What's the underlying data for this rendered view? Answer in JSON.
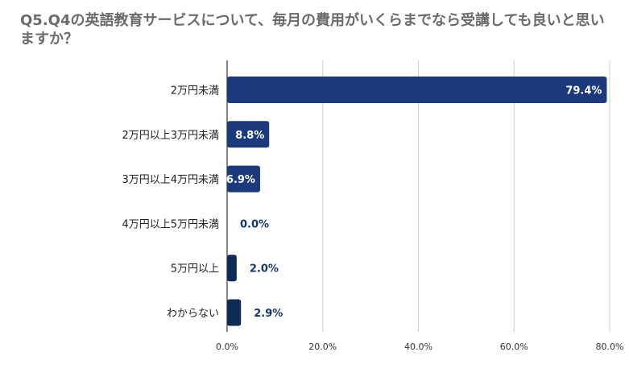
{
  "title": "Q5.Q4の英語教育サービスについて、毎月の費用がいくらまでなら受講しても良いと思いますか？",
  "colors": {
    "bar_main": "#1a3a7c",
    "bar_alt": "#0f2a55",
    "grid": "#d0d0d0",
    "label_inside": "#ffffff",
    "label_outside": "#153768"
  },
  "chart_data": {
    "type": "bar",
    "orientation": "horizontal",
    "title": "Q5.Q4の英語教育サービスについて、毎月の費用がいくらまでなら受講しても良いと思いますか？",
    "categories": [
      "2万円未満",
      "2万円以上3万円未満",
      "3万円以上4万円未満",
      "4万円以上5万円未満",
      "5万円以上",
      "わからない"
    ],
    "values": [
      79.4,
      8.8,
      6.9,
      0.0,
      2.0,
      2.9
    ],
    "value_labels": [
      "79.4%",
      "8.8%",
      "6.9%",
      "0.0%",
      "2.0%",
      "2.9%"
    ],
    "xlim": [
      0,
      80
    ],
    "xticks": [
      0,
      20,
      40,
      60,
      80
    ],
    "xtick_labels": [
      "0.0%",
      "20.0%",
      "40.0%",
      "60.0%",
      "80.0%"
    ],
    "grid": true,
    "xlabel": "",
    "ylabel": ""
  }
}
